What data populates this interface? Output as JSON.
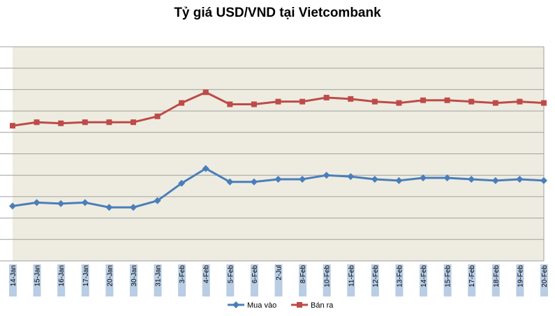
{
  "chart_data": {
    "type": "line",
    "title": "Tỷ giá USD/VND tại Vietcombank",
    "categories": [
      "14-Jan",
      "15-Jan",
      "16-Jan",
      "17-Jan",
      "20-Jan",
      "30-Jan",
      "31-Jan",
      "3-Feb",
      "4-Feb",
      "5-Feb",
      "6-Feb",
      "2-Jul",
      "8-Feb",
      "10-Feb",
      "11-Feb",
      "12-Feb",
      "13-Feb",
      "14-Feb",
      "15-Feb",
      "17-Feb",
      "18-Feb",
      "19-Feb",
      "20-Feb"
    ],
    "series": [
      {
        "name": "Mua vào",
        "color": "#4a7ebb",
        "marker": "diamond",
        "values": [
          20.5,
          21.8,
          21.4,
          21.8,
          20.0,
          20.0,
          22.5,
          29.0,
          34.5,
          29.5,
          29.5,
          30.5,
          30.5,
          32.0,
          31.5,
          30.5,
          30.0,
          31.0,
          31.0,
          30.5,
          30.0,
          30.5,
          30.0
        ]
      },
      {
        "name": "Bán ra",
        "color": "#be4b48",
        "marker": "square",
        "values": [
          50.5,
          51.8,
          51.4,
          51.8,
          51.8,
          51.8,
          54.0,
          59.0,
          63.0,
          58.5,
          58.5,
          59.5,
          59.5,
          61.0,
          60.5,
          59.5,
          59.0,
          60.0,
          60.0,
          59.5,
          59.0,
          59.5,
          59.0
        ]
      }
    ],
    "ylim": [
      0,
      80
    ],
    "y_gridlines": 10,
    "y_tick_labels_visible": false,
    "plot_background": "#eeece1",
    "gridline_color": "#a0a0a0",
    "tick_highlight_color": "#b9cde5",
    "legend_position": "bottom",
    "xlabel": "",
    "ylabel": ""
  }
}
